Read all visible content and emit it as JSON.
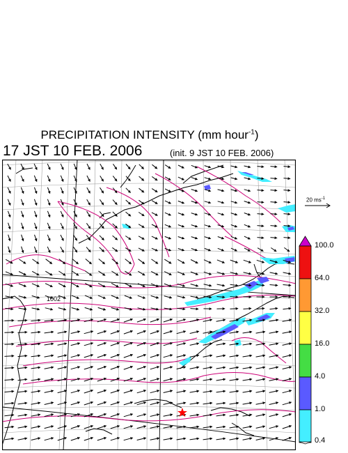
{
  "title": {
    "main": "PRECIPITATION INTENSITY (mm hour",
    "exponent": "-1",
    "close": ")"
  },
  "subtitle": "17 JST 10 FEB. 2006",
  "init_note": "(init. 9 JST 10 FEB. 2006)",
  "contour_label": "1002",
  "reference_vector": {
    "value": "20 ms",
    "exponent": "-1",
    "speed": 20
  },
  "colorbar": {
    "labels": [
      "100.0",
      "64.0",
      "32.0",
      "16.0",
      "4.0",
      "1.0",
      "0.4"
    ],
    "colors": [
      "#cc00cc",
      "#ee1111",
      "#ff9933",
      "#ffff44",
      "#44dd44",
      "#5a5aff",
      "#44eeff",
      "#ffffff"
    ]
  },
  "map_style": {
    "coast_color": "#000000",
    "grid_color": "#a0a0a0",
    "isobar_color": "#cc0077",
    "vector_color": "#000000",
    "marker_color": "#ff0000"
  }
}
